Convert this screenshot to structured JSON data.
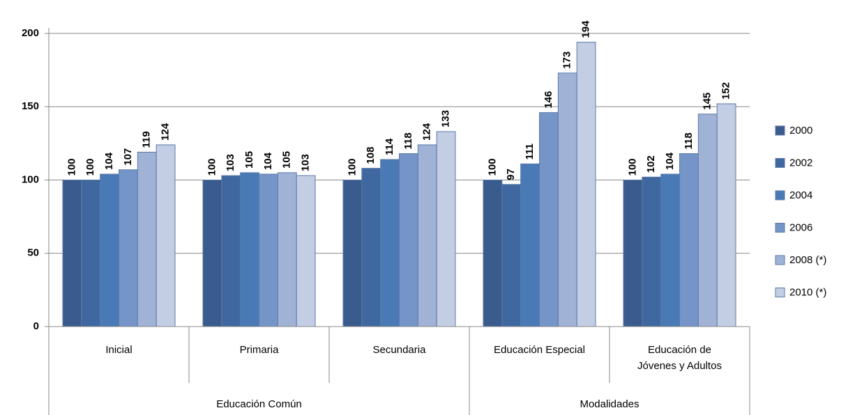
{
  "chart_data": {
    "type": "bar",
    "category_groups": [
      {
        "name": "Educación Común",
        "categories": [
          "Inicial",
          "Primaria",
          "Secundaria"
        ]
      },
      {
        "name": "Modalidades",
        "categories": [
          "Educación Especial",
          "Educación de\nJóvenes y Adultos"
        ]
      }
    ],
    "series": [
      {
        "name": "2000",
        "color": "#3a5b8d",
        "values": [
          100,
          100,
          100,
          100,
          100
        ]
      },
      {
        "name": "2002",
        "color": "#3f68a0",
        "values": [
          100,
          103,
          108,
          97,
          102
        ]
      },
      {
        "name": "2004",
        "color": "#4a7ab6",
        "values": [
          104,
          105,
          114,
          111,
          104
        ]
      },
      {
        "name": "2006",
        "color": "#7595c8",
        "values": [
          107,
          104,
          118,
          146,
          118
        ]
      },
      {
        "name": "2008 (*)",
        "color": "#a0b2d6",
        "values": [
          119,
          105,
          124,
          173,
          145
        ]
      },
      {
        "name": "2010 (*)",
        "color": "#c3cde3",
        "values": [
          124,
          103,
          133,
          194,
          152
        ]
      }
    ],
    "ylim": [
      0,
      200
    ],
    "yticks": [
      0,
      50,
      100,
      150,
      200
    ],
    "grid": true,
    "legend": "right"
  }
}
